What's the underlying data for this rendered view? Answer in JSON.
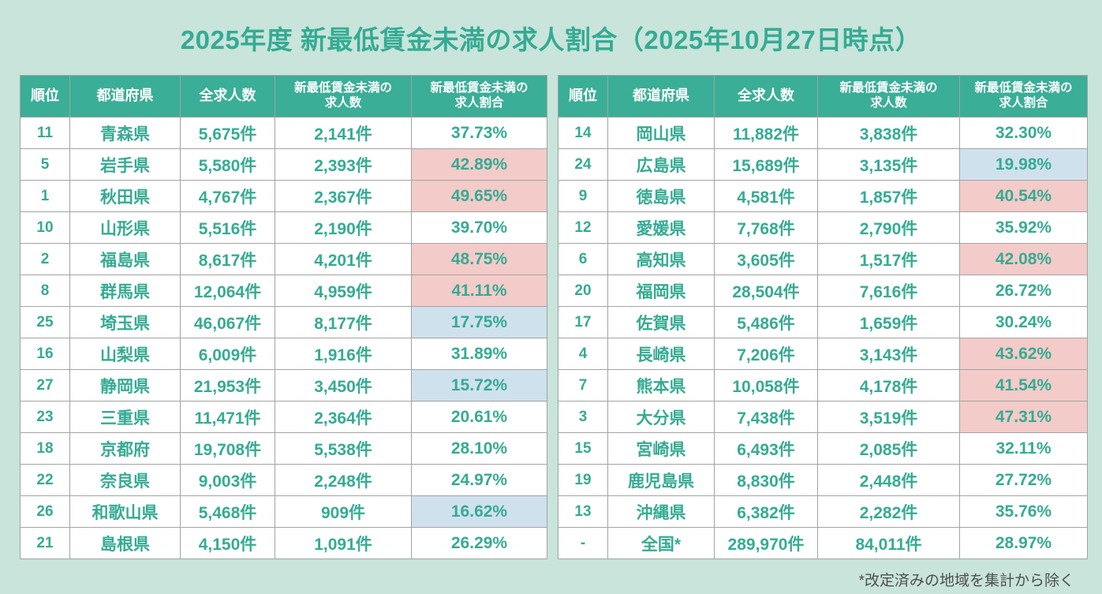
{
  "title": "2025年度 新最低賃金未満の求人割合（2025年10月27日時点）",
  "footnote": "*改定済みの地域を集計から除く",
  "colors": {
    "background": "#C8E4DB",
    "teal_text": "#35AB93",
    "header_background": "#3AAE96",
    "header_text": "#FFFFFF",
    "highlight_high_pink": "#F3CBC9",
    "highlight_low_blue": "#D0E1EE"
  },
  "chart_data": {
    "type": "table",
    "columns": [
      "順位",
      "都道府県",
      "全求人数",
      "新最低賃金未満の\n求人数",
      "新最低賃金未満の\n求人割合"
    ],
    "tables": [
      {
        "rows": [
          {
            "rank": "11",
            "prefecture": "青森県",
            "total": "5,675件",
            "below": "2,141件",
            "ratio": "37.73%",
            "highlight": "none"
          },
          {
            "rank": "5",
            "prefecture": "岩手県",
            "total": "5,580件",
            "below": "2,393件",
            "ratio": "42.89%",
            "highlight": "high"
          },
          {
            "rank": "1",
            "prefecture": "秋田県",
            "total": "4,767件",
            "below": "2,367件",
            "ratio": "49.65%",
            "highlight": "high"
          },
          {
            "rank": "10",
            "prefecture": "山形県",
            "total": "5,516件",
            "below": "2,190件",
            "ratio": "39.70%",
            "highlight": "none"
          },
          {
            "rank": "2",
            "prefecture": "福島県",
            "total": "8,617件",
            "below": "4,201件",
            "ratio": "48.75%",
            "highlight": "high"
          },
          {
            "rank": "8",
            "prefecture": "群馬県",
            "total": "12,064件",
            "below": "4,959件",
            "ratio": "41.11%",
            "highlight": "high"
          },
          {
            "rank": "25",
            "prefecture": "埼玉県",
            "total": "46,067件",
            "below": "8,177件",
            "ratio": "17.75%",
            "highlight": "low"
          },
          {
            "rank": "16",
            "prefecture": "山梨県",
            "total": "6,009件",
            "below": "1,916件",
            "ratio": "31.89%",
            "highlight": "none"
          },
          {
            "rank": "27",
            "prefecture": "静岡県",
            "total": "21,953件",
            "below": "3,450件",
            "ratio": "15.72%",
            "highlight": "low"
          },
          {
            "rank": "23",
            "prefecture": "三重県",
            "total": "11,471件",
            "below": "2,364件",
            "ratio": "20.61%",
            "highlight": "none"
          },
          {
            "rank": "18",
            "prefecture": "京都府",
            "total": "19,708件",
            "below": "5,538件",
            "ratio": "28.10%",
            "highlight": "none"
          },
          {
            "rank": "22",
            "prefecture": "奈良県",
            "total": "9,003件",
            "below": "2,248件",
            "ratio": "24.97%",
            "highlight": "none"
          },
          {
            "rank": "26",
            "prefecture": "和歌山県",
            "total": "5,468件",
            "below": "909件",
            "ratio": "16.62%",
            "highlight": "low"
          },
          {
            "rank": "21",
            "prefecture": "島根県",
            "total": "4,150件",
            "below": "1,091件",
            "ratio": "26.29%",
            "highlight": "none"
          }
        ]
      },
      {
        "rows": [
          {
            "rank": "14",
            "prefecture": "岡山県",
            "total": "11,882件",
            "below": "3,838件",
            "ratio": "32.30%",
            "highlight": "none"
          },
          {
            "rank": "24",
            "prefecture": "広島県",
            "total": "15,689件",
            "below": "3,135件",
            "ratio": "19.98%",
            "highlight": "low"
          },
          {
            "rank": "9",
            "prefecture": "徳島県",
            "total": "4,581件",
            "below": "1,857件",
            "ratio": "40.54%",
            "highlight": "high"
          },
          {
            "rank": "12",
            "prefecture": "愛媛県",
            "total": "7,768件",
            "below": "2,790件",
            "ratio": "35.92%",
            "highlight": "none"
          },
          {
            "rank": "6",
            "prefecture": "高知県",
            "total": "3,605件",
            "below": "1,517件",
            "ratio": "42.08%",
            "highlight": "high"
          },
          {
            "rank": "20",
            "prefecture": "福岡県",
            "total": "28,504件",
            "below": "7,616件",
            "ratio": "26.72%",
            "highlight": "none"
          },
          {
            "rank": "17",
            "prefecture": "佐賀県",
            "total": "5,486件",
            "below": "1,659件",
            "ratio": "30.24%",
            "highlight": "none"
          },
          {
            "rank": "4",
            "prefecture": "長崎県",
            "total": "7,206件",
            "below": "3,143件",
            "ratio": "43.62%",
            "highlight": "high"
          },
          {
            "rank": "7",
            "prefecture": "熊本県",
            "total": "10,058件",
            "below": "4,178件",
            "ratio": "41.54%",
            "highlight": "high"
          },
          {
            "rank": "3",
            "prefecture": "大分県",
            "total": "7,438件",
            "below": "3,519件",
            "ratio": "47.31%",
            "highlight": "high"
          },
          {
            "rank": "15",
            "prefecture": "宮崎県",
            "total": "6,493件",
            "below": "2,085件",
            "ratio": "32.11%",
            "highlight": "none"
          },
          {
            "rank": "19",
            "prefecture": "鹿児島県",
            "total": "8,830件",
            "below": "2,448件",
            "ratio": "27.72%",
            "highlight": "none"
          },
          {
            "rank": "13",
            "prefecture": "沖縄県",
            "total": "6,382件",
            "below": "2,282件",
            "ratio": "35.76%",
            "highlight": "none"
          },
          {
            "rank": "-",
            "prefecture": "全国*",
            "total": "289,970件",
            "below": "84,011件",
            "ratio": "28.97%",
            "highlight": "none"
          }
        ]
      }
    ]
  }
}
